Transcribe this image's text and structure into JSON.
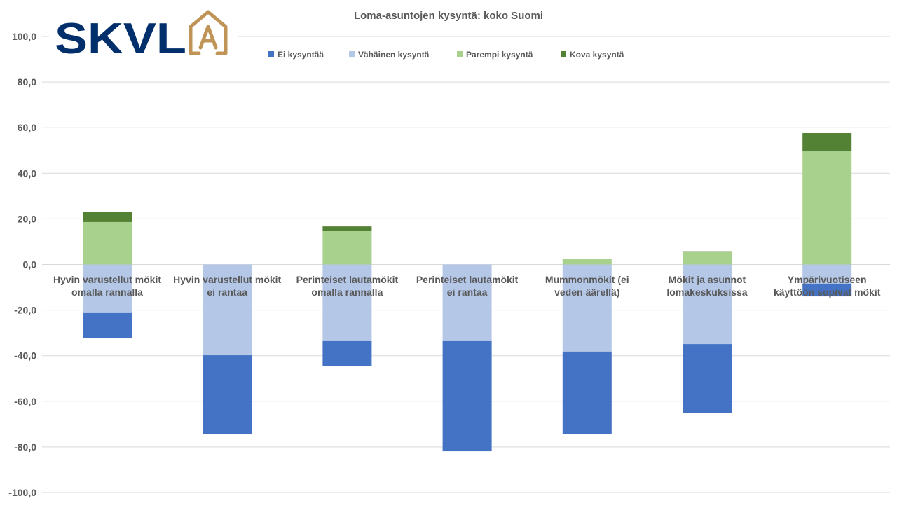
{
  "logo_text": "SKVLA",
  "chart_data": {
    "type": "bar",
    "stacked": true,
    "title": "Loma-asuntojen kysyntä: koko Suomi",
    "xlabel": "",
    "ylabel": "",
    "ylim": [
      -100,
      100
    ],
    "yticks": [
      "100,0",
      "80,0",
      "60,0",
      "40,0",
      "20,0",
      "0,0",
      "-20,0",
      "-40,0",
      "-60,0",
      "-80,0",
      "-100,0"
    ],
    "ytick_values": [
      100,
      80,
      60,
      40,
      20,
      0,
      -20,
      -40,
      -60,
      -80,
      -100
    ],
    "grid": true,
    "legend_position": "top-center",
    "categories": [
      [
        "Hyvin varustellut mökit",
        "omalla rannalla"
      ],
      [
        "Hyvin varustellut mökit",
        "ei rantaa"
      ],
      [
        "Perinteiset lautamökit",
        "omalla rannalla"
      ],
      [
        "Perinteiset lautamökit",
        "ei rantaa"
      ],
      [
        "Mummonmökit (ei",
        "veden äärellä)"
      ],
      [
        "Mökit ja asunnot",
        "lomakeskuksissa"
      ],
      [
        "Ympärivuotiseen",
        "käyttöön sopivat mökit"
      ]
    ],
    "series": [
      {
        "name": "Ei kysyntää",
        "color": "#4472c4",
        "values": [
          -11.1,
          -34.4,
          -11.4,
          -48.6,
          -36.0,
          -30.1,
          -5.6
        ]
      },
      {
        "name": "Vähäinen kysyntä",
        "color": "#b4c7e7",
        "values": [
          -21.0,
          -39.8,
          -33.3,
          -33.3,
          -38.2,
          -34.9,
          -8.4
        ]
      },
      {
        "name": "Parempi kysyntä",
        "color": "#a9d18e",
        "values": [
          18.6,
          0,
          14.6,
          0,
          2.6,
          5.4,
          49.6
        ]
      },
      {
        "name": "Kova kysyntä",
        "color": "#548235",
        "values": [
          4.3,
          0,
          2.1,
          0,
          0,
          0.4,
          8.0
        ]
      }
    ]
  }
}
